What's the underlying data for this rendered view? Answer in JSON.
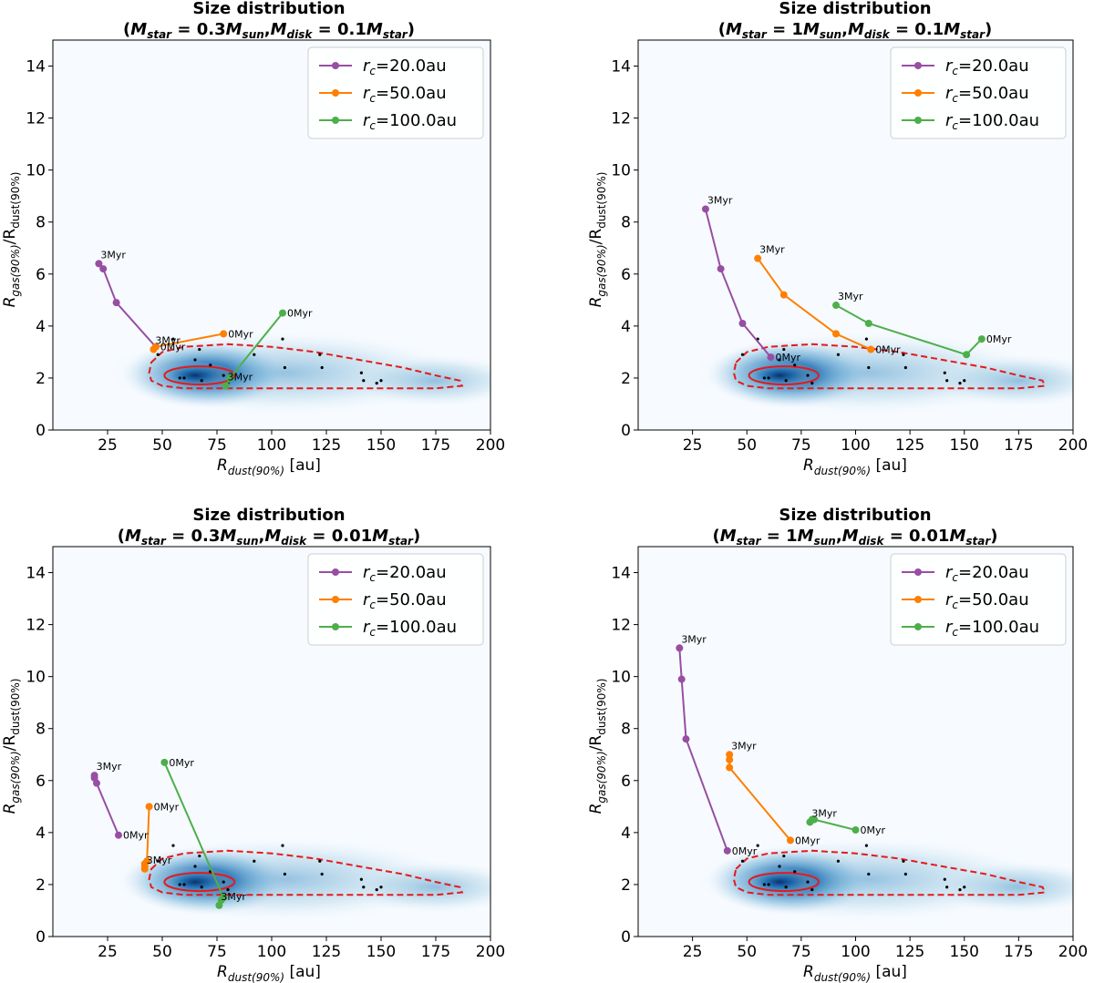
{
  "chart_data": [
    {
      "type": "line",
      "title": "Size distribution",
      "subtitle_parts": {
        "p1": "(",
        "m1": "M",
        "s1": "star",
        "e1": " = 0.3",
        "m2": "M",
        "s2": "sun",
        "c1": ",",
        "m3": "M",
        "s3": "disk",
        "e2": " = 0.1",
        "m4": "M",
        "s4": "star",
        "p2": ")"
      },
      "xlabel": {
        "main": "R",
        "sub": "dust(90%)",
        "unit": " [au]"
      },
      "ylabel": {
        "main": "R",
        "sub1": "gas(90%)",
        "slash": "/R",
        "sub2": "dust(90%)"
      },
      "xlim": [
        0,
        200
      ],
      "ylim": [
        0,
        15
      ],
      "xticks": [
        "25",
        "50",
        "75",
        "100",
        "125",
        "150",
        "175",
        "200"
      ],
      "yticks": [
        "0",
        "2",
        "4",
        "6",
        "8",
        "10",
        "12",
        "14"
      ],
      "legend": [
        {
          "label_main": "r",
          "label_sub": "c",
          "label_val": "=20.0au"
        },
        {
          "label_main": "r",
          "label_sub": "c",
          "label_val": "=50.0au"
        },
        {
          "label_main": "r",
          "label_sub": "c",
          "label_val": "=100.0au"
        }
      ],
      "series": [
        {
          "name": "rc=20.0au",
          "x": [
            21,
            23,
            29,
            47
          ],
          "y": [
            6.4,
            6.2,
            4.9,
            3.2
          ],
          "start_label": "3Myr",
          "end_label": "0Myr"
        },
        {
          "name": "rc=50.0au",
          "x": [
            46,
            47,
            78
          ],
          "y": [
            3.1,
            3.2,
            3.7
          ],
          "start_label": "3Myr",
          "end_label": "0Myr"
        },
        {
          "name": "rc=100.0au",
          "x": [
            79,
            81,
            105
          ],
          "y": [
            1.7,
            2.0,
            4.5
          ],
          "start_label": "3Myr",
          "end_label": "0Myr"
        }
      ]
    },
    {
      "type": "line",
      "title": "Size distribution",
      "subtitle_parts": {
        "p1": "(",
        "m1": "M",
        "s1": "star",
        "e1": " = 1",
        "m2": "M",
        "s2": "sun",
        "c1": ",",
        "m3": "M",
        "s3": "disk",
        "e2": " = 0.1",
        "m4": "M",
        "s4": "star",
        "p2": ")"
      },
      "xlabel": {
        "main": "R",
        "sub": "dust(90%)",
        "unit": " [au]"
      },
      "ylabel": {
        "main": "R",
        "sub1": "gas(90%)",
        "slash": "/R",
        "sub2": "dust(90%)"
      },
      "xlim": [
        0,
        200
      ],
      "ylim": [
        0,
        15
      ],
      "xticks": [
        "25",
        "50",
        "75",
        "100",
        "125",
        "150",
        "175",
        "200"
      ],
      "yticks": [
        "0",
        "2",
        "4",
        "6",
        "8",
        "10",
        "12",
        "14"
      ],
      "legend": [
        {
          "label_main": "r",
          "label_sub": "c",
          "label_val": "=20.0au"
        },
        {
          "label_main": "r",
          "label_sub": "c",
          "label_val": "=50.0au"
        },
        {
          "label_main": "r",
          "label_sub": "c",
          "label_val": "=100.0au"
        }
      ],
      "series": [
        {
          "name": "rc=20.0au",
          "x": [
            31,
            38,
            48,
            61
          ],
          "y": [
            8.5,
            6.2,
            4.1,
            2.8
          ],
          "start_label": "3Myr",
          "end_label": "0Myr"
        },
        {
          "name": "rc=50.0au",
          "x": [
            55,
            67,
            91,
            107
          ],
          "y": [
            6.6,
            5.2,
            3.7,
            3.1
          ],
          "start_label": "3Myr",
          "end_label": "0Myr"
        },
        {
          "name": "rc=100.0au",
          "x": [
            91,
            106,
            151,
            158
          ],
          "y": [
            4.8,
            4.1,
            2.9,
            3.5
          ],
          "start_label": "3Myr",
          "end_label": "0Myr"
        }
      ]
    },
    {
      "type": "line",
      "title": "Size distribution",
      "subtitle_parts": {
        "p1": "(",
        "m1": "M",
        "s1": "star",
        "e1": " = 0.3",
        "m2": "M",
        "s2": "sun",
        "c1": ",",
        "m3": "M",
        "s3": "disk",
        "e2": " = 0.01",
        "m4": "M",
        "s4": "star",
        "p2": ")"
      },
      "xlabel": {
        "main": "R",
        "sub": "dust(90%)",
        "unit": " [au]"
      },
      "ylabel": {
        "main": "R",
        "sub1": "gas(90%)",
        "slash": "/R",
        "sub2": "dust(90%)"
      },
      "xlim": [
        0,
        200
      ],
      "ylim": [
        0,
        15
      ],
      "xticks": [
        "25",
        "50",
        "75",
        "100",
        "125",
        "150",
        "175",
        "200"
      ],
      "yticks": [
        "0",
        "2",
        "4",
        "6",
        "8",
        "10",
        "12",
        "14"
      ],
      "legend": [
        {
          "label_main": "r",
          "label_sub": "c",
          "label_val": "=20.0au"
        },
        {
          "label_main": "r",
          "label_sub": "c",
          "label_val": "=50.0au"
        },
        {
          "label_main": "r",
          "label_sub": "c",
          "label_val": "=100.0au"
        }
      ],
      "series": [
        {
          "name": "rc=20.0au",
          "x": [
            19,
            19,
            20,
            30
          ],
          "y": [
            6.2,
            6.1,
            5.9,
            3.9
          ],
          "start_label": "3Myr",
          "end_label": "0Myr"
        },
        {
          "name": "rc=50.0au",
          "x": [
            42,
            42,
            42,
            43,
            44
          ],
          "y": [
            2.6,
            2.7,
            2.8,
            2.9,
            5.0
          ],
          "start_label": "3Myr",
          "end_label": "0Myr"
        },
        {
          "name": "rc=100.0au",
          "x": [
            76,
            77,
            78,
            51
          ],
          "y": [
            1.2,
            1.4,
            1.5,
            6.7
          ],
          "start_label": "3Myr",
          "end_label": "0Myr"
        }
      ]
    },
    {
      "type": "line",
      "title": "Size distribution",
      "subtitle_parts": {
        "p1": "(",
        "m1": "M",
        "s1": "star",
        "e1": " = 1",
        "m2": "M",
        "s2": "sun",
        "c1": ",",
        "m3": "M",
        "s3": "disk",
        "e2": " = 0.01",
        "m4": "M",
        "s4": "star",
        "p2": ")"
      },
      "xlabel": {
        "main": "R",
        "sub": "dust(90%)",
        "unit": " [au]"
      },
      "ylabel": {
        "main": "R",
        "sub1": "gas(90%)",
        "slash": "/R",
        "sub2": "dust(90%)"
      },
      "xlim": [
        0,
        200
      ],
      "ylim": [
        0,
        15
      ],
      "xticks": [
        "25",
        "50",
        "75",
        "100",
        "125",
        "150",
        "175",
        "200"
      ],
      "yticks": [
        "0",
        "2",
        "4",
        "6",
        "8",
        "10",
        "12",
        "14"
      ],
      "legend": [
        {
          "label_main": "r",
          "label_sub": "c",
          "label_val": "=20.0au"
        },
        {
          "label_main": "r",
          "label_sub": "c",
          "label_val": "=50.0au"
        },
        {
          "label_main": "r",
          "label_sub": "c",
          "label_val": "=100.0au"
        }
      ],
      "series": [
        {
          "name": "rc=20.0au",
          "x": [
            19,
            20,
            22,
            41
          ],
          "y": [
            11.1,
            9.9,
            7.6,
            3.3
          ],
          "start_label": "3Myr",
          "end_label": "0Myr"
        },
        {
          "name": "rc=50.0au",
          "x": [
            42,
            42,
            42,
            70
          ],
          "y": [
            7.0,
            6.8,
            6.5,
            3.7
          ],
          "start_label": "3Myr",
          "end_label": "0Myr"
        },
        {
          "name": "rc=100.0au",
          "x": [
            79,
            80,
            81,
            100
          ],
          "y": [
            4.4,
            4.5,
            4.5,
            4.1
          ],
          "start_label": "3Myr",
          "end_label": "0Myr"
        }
      ]
    }
  ],
  "observed_points": {
    "x": [
      48,
      55,
      58,
      60,
      65,
      67,
      68,
      72,
      78,
      80,
      92,
      105,
      106,
      122,
      123,
      141,
      142,
      148,
      150
    ],
    "y": [
      2.9,
      3.5,
      2.0,
      2.0,
      2.7,
      3.1,
      1.9,
      2.5,
      2.1,
      1.8,
      2.9,
      3.5,
      2.4,
      2.9,
      2.4,
      2.2,
      1.9,
      1.8,
      1.9
    ]
  },
  "contour": {
    "outer_x": [
      45,
      50,
      60,
      80,
      100,
      120,
      140,
      160,
      175,
      186,
      187,
      175,
      160,
      140,
      120,
      100,
      80,
      60,
      50,
      45,
      44,
      45
    ],
    "outer_y": [
      2.6,
      3.0,
      3.2,
      3.3,
      3.2,
      3.0,
      2.7,
      2.4,
      2.1,
      1.9,
      1.7,
      1.6,
      1.6,
      1.6,
      1.6,
      1.6,
      1.6,
      1.6,
      1.7,
      1.9,
      2.2,
      2.6
    ],
    "inner_center": [
      67,
      2.1
    ],
    "inner_rx": 16,
    "inner_ry": 0.35
  },
  "colors": {
    "series": [
      "#984ea3",
      "#ff7f00",
      "#4daf4a"
    ],
    "contour": "#e41a1c",
    "heat_low": "#f7fbff",
    "heat_high": "#08306b"
  }
}
